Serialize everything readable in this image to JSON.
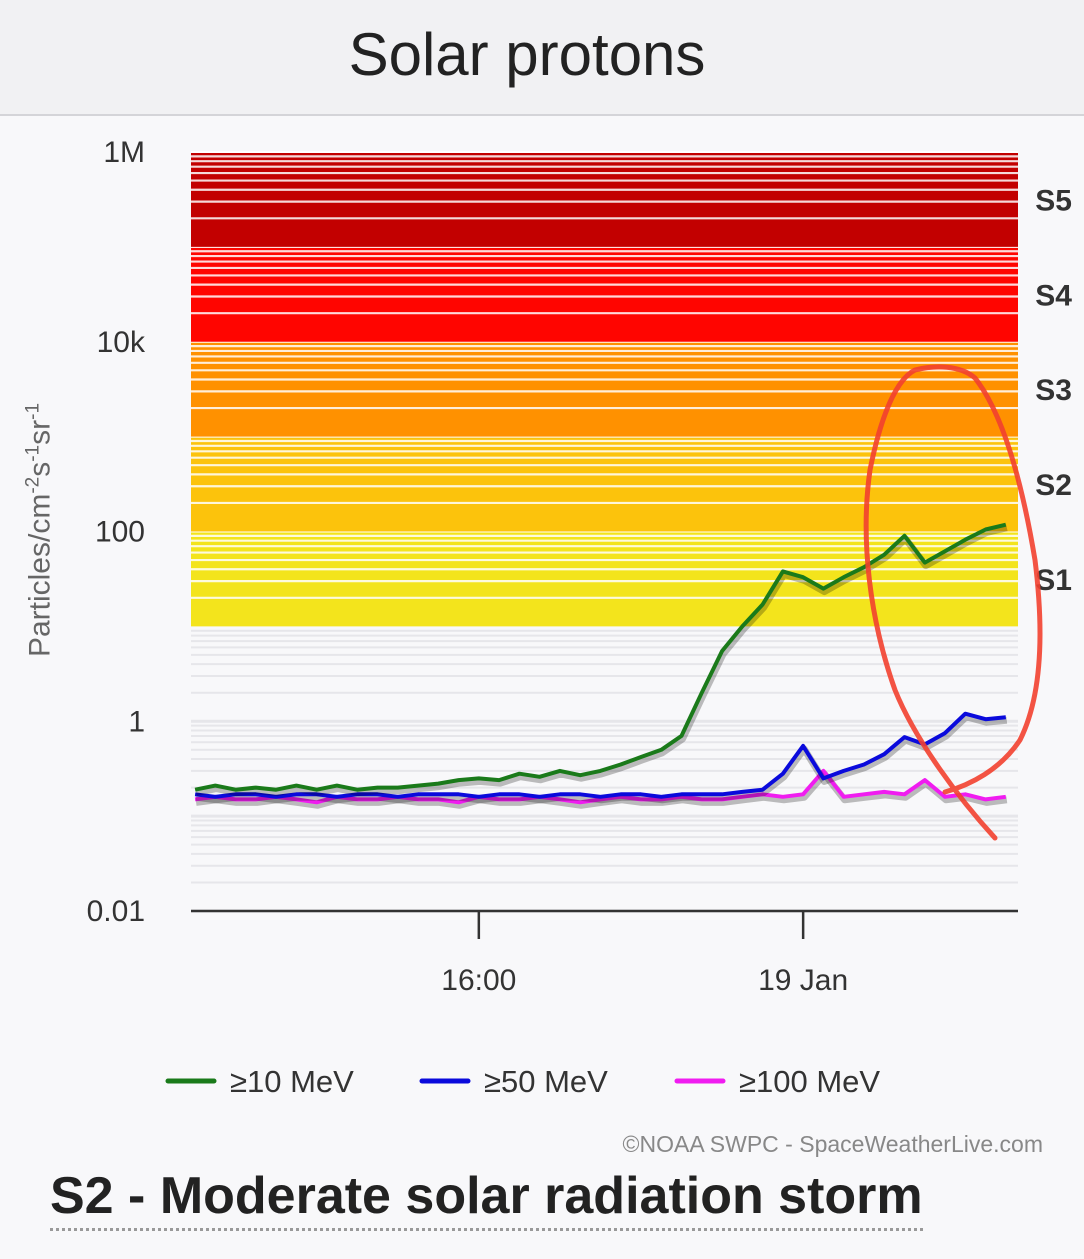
{
  "header": {
    "title": "Solar protons"
  },
  "chart_data": {
    "type": "line",
    "title": "Solar protons",
    "ylabel_parts": [
      "Particles/cm",
      "-2",
      "s",
      "-1",
      "sr",
      "-1"
    ],
    "yscale": "log",
    "ylim": [
      0.01,
      1000000
    ],
    "ytick_values": [
      1000000,
      10000,
      100,
      1,
      0.01
    ],
    "ytick_labels": [
      "1M",
      "10k",
      "100",
      "1",
      "0.01"
    ],
    "x_unit": "hours since 18 Jan 00:00",
    "xlim": [
      8.9,
      29.3
    ],
    "xtick_values": [
      16,
      24
    ],
    "xtick_labels": [
      "16:00",
      "19 Jan"
    ],
    "storm_levels": [
      {
        "label": "S1",
        "min": 10,
        "max": 100,
        "color": "#f3e41c"
      },
      {
        "label": "S2",
        "min": 100,
        "max": 1000,
        "color": "#fcc30c"
      },
      {
        "label": "S3",
        "min": 1000,
        "max": 10000,
        "color": "#ff9100"
      },
      {
        "label": "S4",
        "min": 10000,
        "max": 100000,
        "color": "#ff0500"
      },
      {
        "label": "S5",
        "min": 100000,
        "max": 1000000,
        "color": "#c20000"
      }
    ],
    "x": [
      9,
      9.5,
      10,
      10.5,
      11,
      11.5,
      12,
      12.5,
      13,
      13.5,
      14,
      14.5,
      15,
      15.5,
      16,
      16.5,
      17,
      17.5,
      18,
      18.5,
      19,
      19.5,
      20,
      20.5,
      21,
      21.5,
      22,
      22.5,
      23,
      23.5,
      24,
      24.5,
      25,
      25.5,
      26,
      26.5,
      27,
      27.5,
      28,
      28.5,
      29
    ],
    "series": [
      {
        "name": "≥10 MeV",
        "color": "#1a7a1a",
        "values": [
          0.19,
          0.21,
          0.19,
          0.2,
          0.19,
          0.21,
          0.19,
          0.21,
          0.19,
          0.2,
          0.2,
          0.21,
          0.22,
          0.24,
          0.25,
          0.24,
          0.28,
          0.26,
          0.3,
          0.27,
          0.3,
          0.35,
          0.42,
          0.5,
          0.7,
          2.0,
          5.5,
          10,
          17,
          38,
          33,
          25,
          33,
          42,
          57,
          90,
          47,
          62,
          82,
          105,
          118
        ]
      },
      {
        "name": "≥50 MeV",
        "color": "#0a0adc",
        "values": [
          0.17,
          0.16,
          0.17,
          0.17,
          0.16,
          0.17,
          0.17,
          0.16,
          0.17,
          0.17,
          0.16,
          0.17,
          0.17,
          0.17,
          0.16,
          0.17,
          0.17,
          0.16,
          0.17,
          0.17,
          0.16,
          0.17,
          0.17,
          0.16,
          0.17,
          0.17,
          0.17,
          0.18,
          0.19,
          0.28,
          0.55,
          0.25,
          0.3,
          0.35,
          0.45,
          0.68,
          0.57,
          0.75,
          1.2,
          1.05,
          1.1
        ]
      },
      {
        "name": "≥100 MeV",
        "color": "#f01cf0",
        "values": [
          0.15,
          0.16,
          0.15,
          0.15,
          0.16,
          0.15,
          0.14,
          0.16,
          0.15,
          0.15,
          0.16,
          0.15,
          0.15,
          0.14,
          0.16,
          0.15,
          0.15,
          0.16,
          0.15,
          0.14,
          0.15,
          0.16,
          0.15,
          0.15,
          0.16,
          0.15,
          0.15,
          0.16,
          0.17,
          0.16,
          0.17,
          0.3,
          0.16,
          0.17,
          0.18,
          0.17,
          0.24,
          0.16,
          0.17,
          0.15,
          0.16
        ]
      }
    ],
    "legend": "bottom"
  },
  "footer": {
    "credit": "©NOAA SWPC - SpaceWeatherLive.com",
    "status": "S2 - Moderate solar radiation storm"
  }
}
